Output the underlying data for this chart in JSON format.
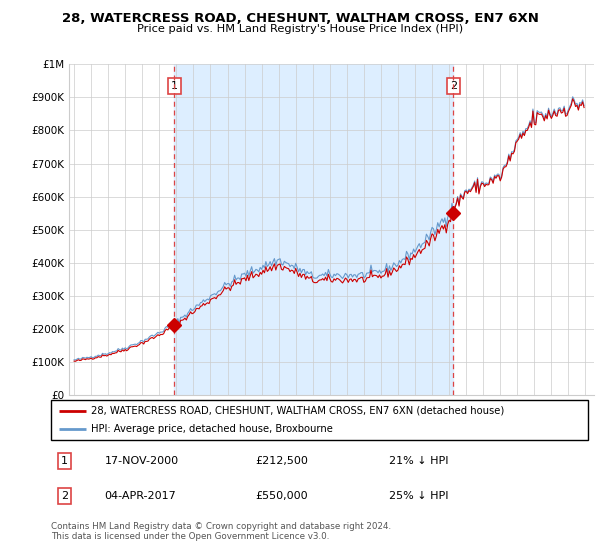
{
  "title": "28, WATERCRESS ROAD, CHESHUNT, WALTHAM CROSS, EN7 6XN",
  "subtitle": "Price paid vs. HM Land Registry's House Price Index (HPI)",
  "ylim": [
    0,
    1000000
  ],
  "yticks": [
    0,
    100000,
    200000,
    300000,
    400000,
    500000,
    600000,
    700000,
    800000,
    900000,
    1000000
  ],
  "ytick_labels": [
    "£0",
    "£100K",
    "£200K",
    "£300K",
    "£400K",
    "£500K",
    "£600K",
    "£700K",
    "£800K",
    "£900K",
    "£1M"
  ],
  "legend_line1": "28, WATERCRESS ROAD, CHESHUNT, WALTHAM CROSS, EN7 6XN (detached house)",
  "legend_line2": "HPI: Average price, detached house, Broxbourne",
  "sale1_date": "17-NOV-2000",
  "sale1_price": 212500,
  "sale1_info": "21% ↓ HPI",
  "sale1_year": 2000.88,
  "sale2_date": "04-APR-2017",
  "sale2_price": 550000,
  "sale2_info": "25% ↓ HPI",
  "sale2_year": 2017.25,
  "footnote1": "Contains HM Land Registry data © Crown copyright and database right 2024.",
  "footnote2": "This data is licensed under the Open Government Licence v3.0.",
  "hpi_color": "#6699cc",
  "price_color": "#cc0000",
  "vline_color": "#dd4444",
  "shade_color": "#ddeeff",
  "background_color": "#ffffff",
  "grid_color": "#cccccc"
}
